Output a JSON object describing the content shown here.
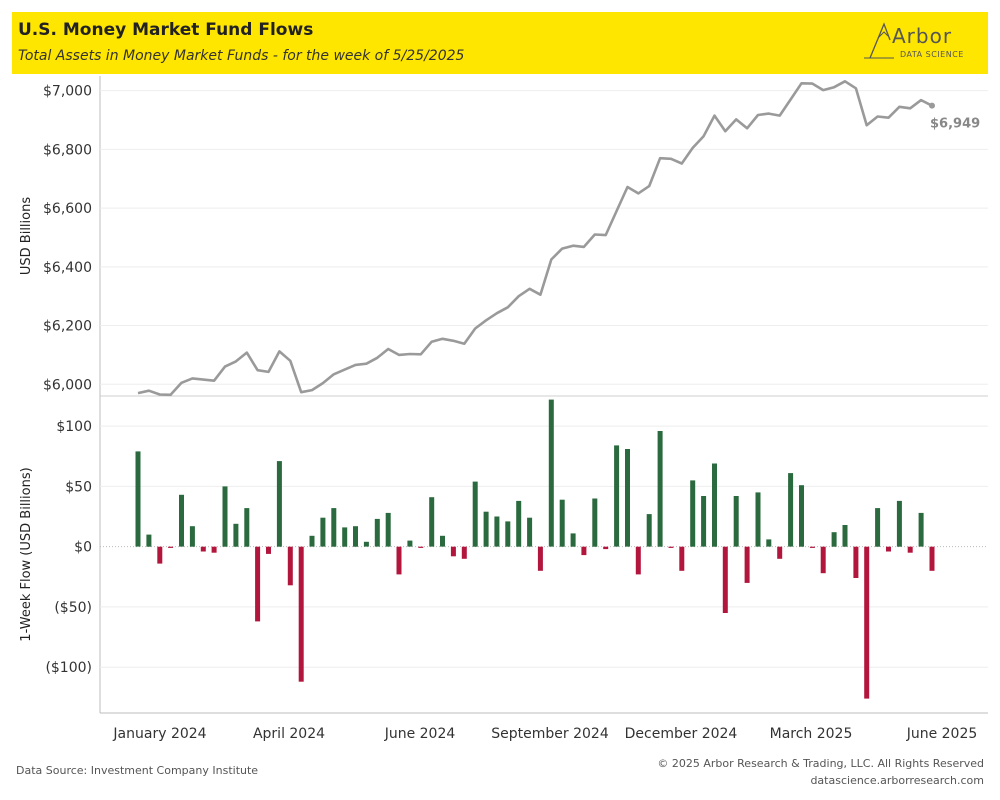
{
  "header": {
    "title": "U.S. Money Market Fund Flows",
    "subtitle": "Total Assets in Money Market Funds  - for the week of 5/25/2025",
    "logo_word": "Arbor",
    "logo_sub": "DATA SCIENCE"
  },
  "footer": {
    "source": "Data Source: Investment Company Institute",
    "copyright": "© 2025 Arbor Research & Trading, LLC. All Rights Reserved",
    "website": "datascience.arborresearch.com"
  },
  "colors": {
    "line": "#9a9a9a",
    "positive": "#2a6a3e",
    "negative": "#b3163c",
    "header": "#ffe600"
  },
  "chart_data": [
    {
      "type": "line",
      "ylabel": "USD Billions",
      "ylim": [
        5960,
        7050
      ],
      "yticks": [
        6000,
        6200,
        6400,
        6600,
        6800,
        7000
      ],
      "ytick_labels": [
        "$6,000",
        "$6,200",
        "$6,400",
        "$6,600",
        "$6,800",
        "$7,000"
      ],
      "end_label": "$6,949",
      "values": [
        5970,
        5978,
        5965,
        5964,
        6005,
        6020,
        6016,
        6012,
        6060,
        6078,
        6108,
        6048,
        6042,
        6112,
        6080,
        5973,
        5980,
        6004,
        6034,
        6050,
        6066,
        6070,
        6090,
        6120,
        6100,
        6103,
        6102,
        6145,
        6155,
        6148,
        6138,
        6190,
        6218,
        6242,
        6262,
        6300,
        6325,
        6305,
        6425,
        6462,
        6472,
        6468,
        6510,
        6508,
        6590,
        6672,
        6650,
        6675,
        6770,
        6768,
        6752,
        6805,
        6845,
        6915,
        6862,
        6902,
        6872,
        6917,
        6922,
        6915,
        6970,
        7025,
        7024,
        7002,
        7012,
        7032,
        7008,
        6882,
        6912,
        6908,
        6945,
        6940,
        6968,
        6949
      ]
    },
    {
      "type": "bar",
      "ylabel": "1-Week Flow (USD Billions)",
      "ylim": [
        -138,
        125
      ],
      "yticks": [
        -100,
        -50,
        0,
        50,
        100
      ],
      "ytick_labels": [
        "($100)",
        "($50)",
        "$0",
        "$50",
        "$100"
      ],
      "x_tick_labels": [
        "January 2024",
        "April 2024",
        "June 2024",
        "September 2024",
        "December 2024",
        "March 2025",
        "June 2025"
      ],
      "values": [
        79,
        10,
        -14,
        -1,
        43,
        17,
        -4,
        -5,
        50,
        19,
        32,
        -62,
        -6,
        71,
        -32,
        -112,
        9,
        24,
        32,
        16,
        17,
        4,
        23,
        28,
        -23,
        5,
        -1,
        41,
        9,
        -8,
        -10,
        54,
        29,
        25,
        21,
        38,
        24,
        -20,
        122,
        39,
        11,
        -7,
        40,
        -2,
        84,
        81,
        -23,
        27,
        96,
        -1,
        -20,
        55,
        42,
        69,
        -55,
        42,
        -30,
        45,
        6,
        -10,
        61,
        51,
        -1,
        -22,
        12,
        18,
        -26,
        -126,
        32,
        -4,
        38,
        -5,
        28,
        -20
      ]
    }
  ]
}
